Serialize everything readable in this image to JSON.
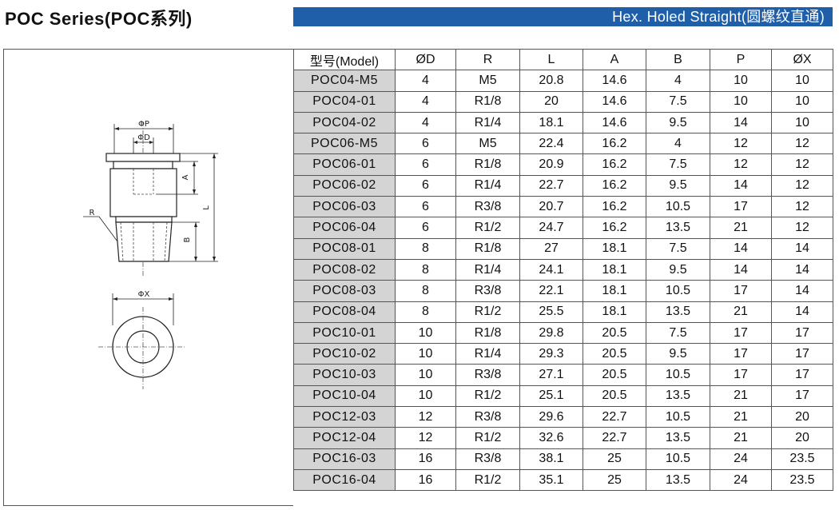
{
  "title": "POC Series(POC系列)",
  "banner": "Hex. Holed Straight(圆螺纹直通)",
  "drawing": {
    "labels": {
      "phi_p": "ΦP",
      "phi_d": "ΦD",
      "a": "A",
      "l": "L",
      "r": "R",
      "b": "B",
      "phi_x": "ΦX"
    }
  },
  "table": {
    "headers": [
      "型号(Model)",
      "ØD",
      "R",
      "L",
      "A",
      "B",
      "P",
      "ØX"
    ],
    "rows": [
      [
        "POC04-M5",
        "4",
        "M5",
        "20.8",
        "14.6",
        "4",
        "10",
        "10"
      ],
      [
        "POC04-01",
        "4",
        "R1/8",
        "20",
        "14.6",
        "7.5",
        "10",
        "10"
      ],
      [
        "POC04-02",
        "4",
        "R1/4",
        "18.1",
        "14.6",
        "9.5",
        "14",
        "10"
      ],
      [
        "POC06-M5",
        "6",
        "M5",
        "22.4",
        "16.2",
        "4",
        "12",
        "12"
      ],
      [
        "POC06-01",
        "6",
        "R1/8",
        "20.9",
        "16.2",
        "7.5",
        "12",
        "12"
      ],
      [
        "POC06-02",
        "6",
        "R1/4",
        "22.7",
        "16.2",
        "9.5",
        "14",
        "12"
      ],
      [
        "POC06-03",
        "6",
        "R3/8",
        "20.7",
        "16.2",
        "10.5",
        "17",
        "12"
      ],
      [
        "POC06-04",
        "6",
        "R1/2",
        "24.7",
        "16.2",
        "13.5",
        "21",
        "12"
      ],
      [
        "POC08-01",
        "8",
        "R1/8",
        "27",
        "18.1",
        "7.5",
        "14",
        "14"
      ],
      [
        "POC08-02",
        "8",
        "R1/4",
        "24.1",
        "18.1",
        "9.5",
        "14",
        "14"
      ],
      [
        "POC08-03",
        "8",
        "R3/8",
        "22.1",
        "18.1",
        "10.5",
        "17",
        "14"
      ],
      [
        "POC08-04",
        "8",
        "R1/2",
        "25.5",
        "18.1",
        "13.5",
        "21",
        "14"
      ],
      [
        "POC10-01",
        "10",
        "R1/8",
        "29.8",
        "20.5",
        "7.5",
        "17",
        "17"
      ],
      [
        "POC10-02",
        "10",
        "R1/4",
        "29.3",
        "20.5",
        "9.5",
        "17",
        "17"
      ],
      [
        "POC10-03",
        "10",
        "R3/8",
        "27.1",
        "20.5",
        "10.5",
        "17",
        "17"
      ],
      [
        "POC10-04",
        "10",
        "R1/2",
        "25.1",
        "20.5",
        "13.5",
        "21",
        "17"
      ],
      [
        "POC12-03",
        "12",
        "R3/8",
        "29.6",
        "22.7",
        "10.5",
        "21",
        "20"
      ],
      [
        "POC12-04",
        "12",
        "R1/2",
        "32.6",
        "22.7",
        "13.5",
        "21",
        "20"
      ],
      [
        "POC16-03",
        "16",
        "R3/8",
        "38.1",
        "25",
        "10.5",
        "24",
        "23.5"
      ],
      [
        "POC16-04",
        "16",
        "R1/2",
        "35.1",
        "25",
        "13.5",
        "24",
        "23.5"
      ]
    ]
  }
}
